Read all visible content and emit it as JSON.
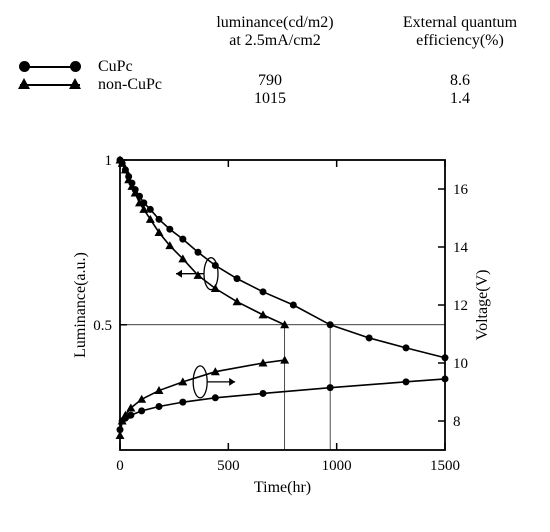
{
  "header": {
    "col1_line1": "luminance(cd/m2)",
    "col1_line2": "at 2.5mA/cm2",
    "col2_line1": "External quantum",
    "col2_line2": "efficiency(%)"
  },
  "legend": {
    "series": [
      {
        "label": "CuPc",
        "luminance": "790",
        "efficiency": "8.6",
        "marker": "circle"
      },
      {
        "label": "non-CuPc",
        "luminance": "1015",
        "efficiency": "1.4",
        "marker": "triangle"
      }
    ]
  },
  "chart": {
    "type": "line-dual-y",
    "xlabel": "Time(hr)",
    "ylabel_left": "Luminance(a.u.)",
    "ylabel_right": "Voltage(V)",
    "xlim": [
      0,
      1500
    ],
    "xticks": [
      0,
      500,
      1000,
      1500
    ],
    "y_left_lim": [
      0.12,
      1.0
    ],
    "y_left_ticks": [
      0.5,
      1
    ],
    "y_right_lim": [
      7,
      17
    ],
    "y_right_ticks": [
      8,
      10,
      12,
      14,
      16
    ],
    "half_life_mark": 0.5,
    "half_time_nonCuPc": 760,
    "half_time_CuPc": 970,
    "line_width": 1.6,
    "marker_size": 7,
    "background_color": "#ffffff",
    "axis_color": "#000000",
    "series": {
      "CuPc_luminance": {
        "yaxis": "left",
        "marker": "circle",
        "x": [
          0,
          10,
          25,
          40,
          55,
          70,
          90,
          110,
          140,
          180,
          230,
          290,
          360,
          440,
          540,
          660,
          800,
          970,
          1150,
          1320,
          1500
        ],
        "y": [
          1.0,
          0.99,
          0.97,
          0.95,
          0.93,
          0.91,
          0.89,
          0.87,
          0.85,
          0.82,
          0.79,
          0.76,
          0.72,
          0.68,
          0.64,
          0.6,
          0.56,
          0.5,
          0.46,
          0.43,
          0.4
        ]
      },
      "nonCuPc_luminance": {
        "yaxis": "left",
        "marker": "triangle",
        "x": [
          0,
          10,
          25,
          40,
          55,
          70,
          90,
          110,
          140,
          180,
          230,
          290,
          360,
          440,
          540,
          660,
          760
        ],
        "y": [
          1.0,
          0.99,
          0.97,
          0.94,
          0.92,
          0.9,
          0.87,
          0.85,
          0.82,
          0.78,
          0.74,
          0.7,
          0.65,
          0.61,
          0.57,
          0.53,
          0.5
        ]
      },
      "CuPc_voltage": {
        "yaxis": "right",
        "marker": "circle",
        "x": [
          0,
          10,
          25,
          50,
          100,
          180,
          290,
          440,
          660,
          970,
          1320,
          1500
        ],
        "y": [
          7.7,
          8.0,
          8.1,
          8.2,
          8.35,
          8.5,
          8.65,
          8.8,
          8.95,
          9.15,
          9.35,
          9.45
        ]
      },
      "nonCuPc_voltage": {
        "yaxis": "right",
        "marker": "triangle",
        "x": [
          0,
          10,
          25,
          50,
          100,
          180,
          290,
          440,
          660,
          760
        ],
        "y": [
          7.5,
          8.0,
          8.2,
          8.45,
          8.75,
          9.05,
          9.35,
          9.7,
          10.0,
          10.1
        ]
      }
    }
  }
}
